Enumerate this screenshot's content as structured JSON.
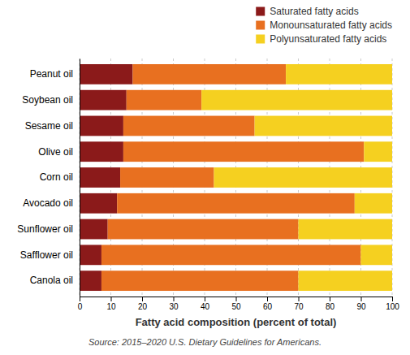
{
  "chart_data": {
    "type": "bar",
    "orientation": "horizontal",
    "stacked": true,
    "categories": [
      "Peanut oil",
      "Soybean oil",
      "Sesame oil",
      "Olive oil",
      "Corn oil",
      "Avocado oil",
      "Sunflower oil",
      "Safflower oil",
      "Canola oil"
    ],
    "series": [
      {
        "name": "Saturated fatty acids",
        "color": "#8B1A1A",
        "values": [
          17,
          15,
          14,
          14,
          13,
          12,
          9,
          7,
          7
        ]
      },
      {
        "name": "Monounsaturated fatty acids",
        "color": "#E87020",
        "values": [
          49,
          24,
          42,
          77,
          30,
          76,
          61,
          83,
          63
        ]
      },
      {
        "name": "Polyunsaturated fatty acids",
        "color": "#F5D020",
        "values": [
          34,
          61,
          44,
          9,
          57,
          12,
          30,
          10,
          30
        ]
      }
    ],
    "x_label": "Fatty acid composition (percent of total)",
    "annotations": [
      "Source: 2015–2020 U.S. Dietary Guidelines for Americans."
    ],
    "xlim": [
      0,
      100
    ],
    "xticks": [
      0,
      10,
      20,
      30,
      40,
      50,
      60,
      70,
      80,
      90,
      100
    ],
    "grid": true,
    "legend": "top"
  }
}
